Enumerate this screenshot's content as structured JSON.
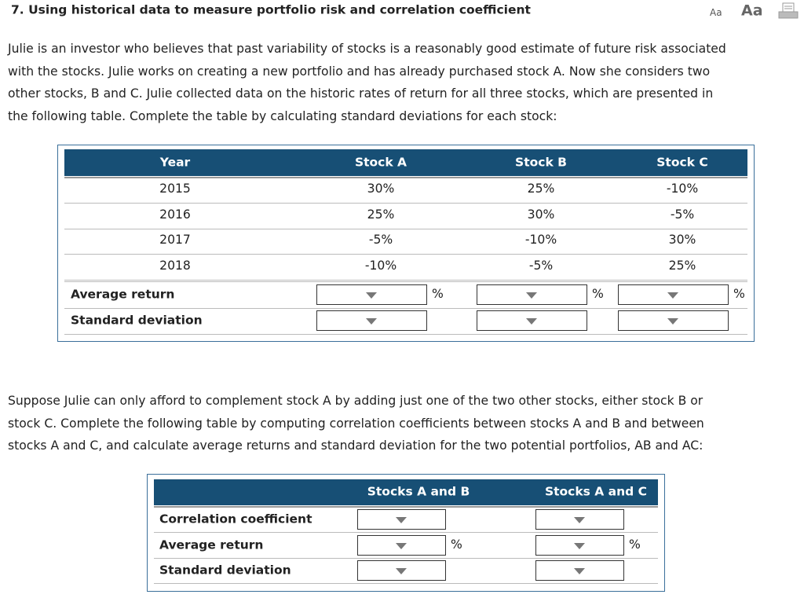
{
  "header": {
    "title": "7. Using historical data to measure portfolio risk and correlation coefficient",
    "font_small": "Aa",
    "font_large": "Aa"
  },
  "intro": {
    "lines": [
      "Julie is an investor who believes that past variability of stocks is a reasonably good estimate of future risk associated",
      "with the stocks. Julie works on creating a new portfolio and has already purchased stock A. Now she considers two",
      "other stocks, B and C. Julie collected data on the historic rates of return for all three stocks, which are presented in",
      "the following table. Complete the table by calculating standard deviations for each stock:"
    ]
  },
  "table1": {
    "columns": [
      "Year",
      "Stock A",
      "Stock B",
      "Stock C"
    ],
    "rows": [
      [
        "2015",
        "30%",
        "25%",
        "-10%"
      ],
      [
        "2016",
        "25%",
        "30%",
        "-5%"
      ],
      [
        "2017",
        "-5%",
        "-10%",
        "30%"
      ],
      [
        "2018",
        "-10%",
        "-5%",
        "25%"
      ]
    ],
    "summary_rows": [
      "Average return",
      "Standard deviation"
    ],
    "unit": "%"
  },
  "question": {
    "lines": [
      "Suppose Julie can only afford to complement stock A by adding just one of the two other stocks, either stock B or",
      "stock C. Complete the following table by computing correlation coefficients between stocks A and B and between",
      "stocks A and C, and calculate average returns and standard deviation for the two potential portfolios, AB and AC:"
    ]
  },
  "table2": {
    "columns": [
      "Stocks A and B",
      "Stocks A and C"
    ],
    "rows": [
      "Correlation coefficient",
      "Average return",
      "Standard deviation"
    ],
    "unit": "%"
  }
}
